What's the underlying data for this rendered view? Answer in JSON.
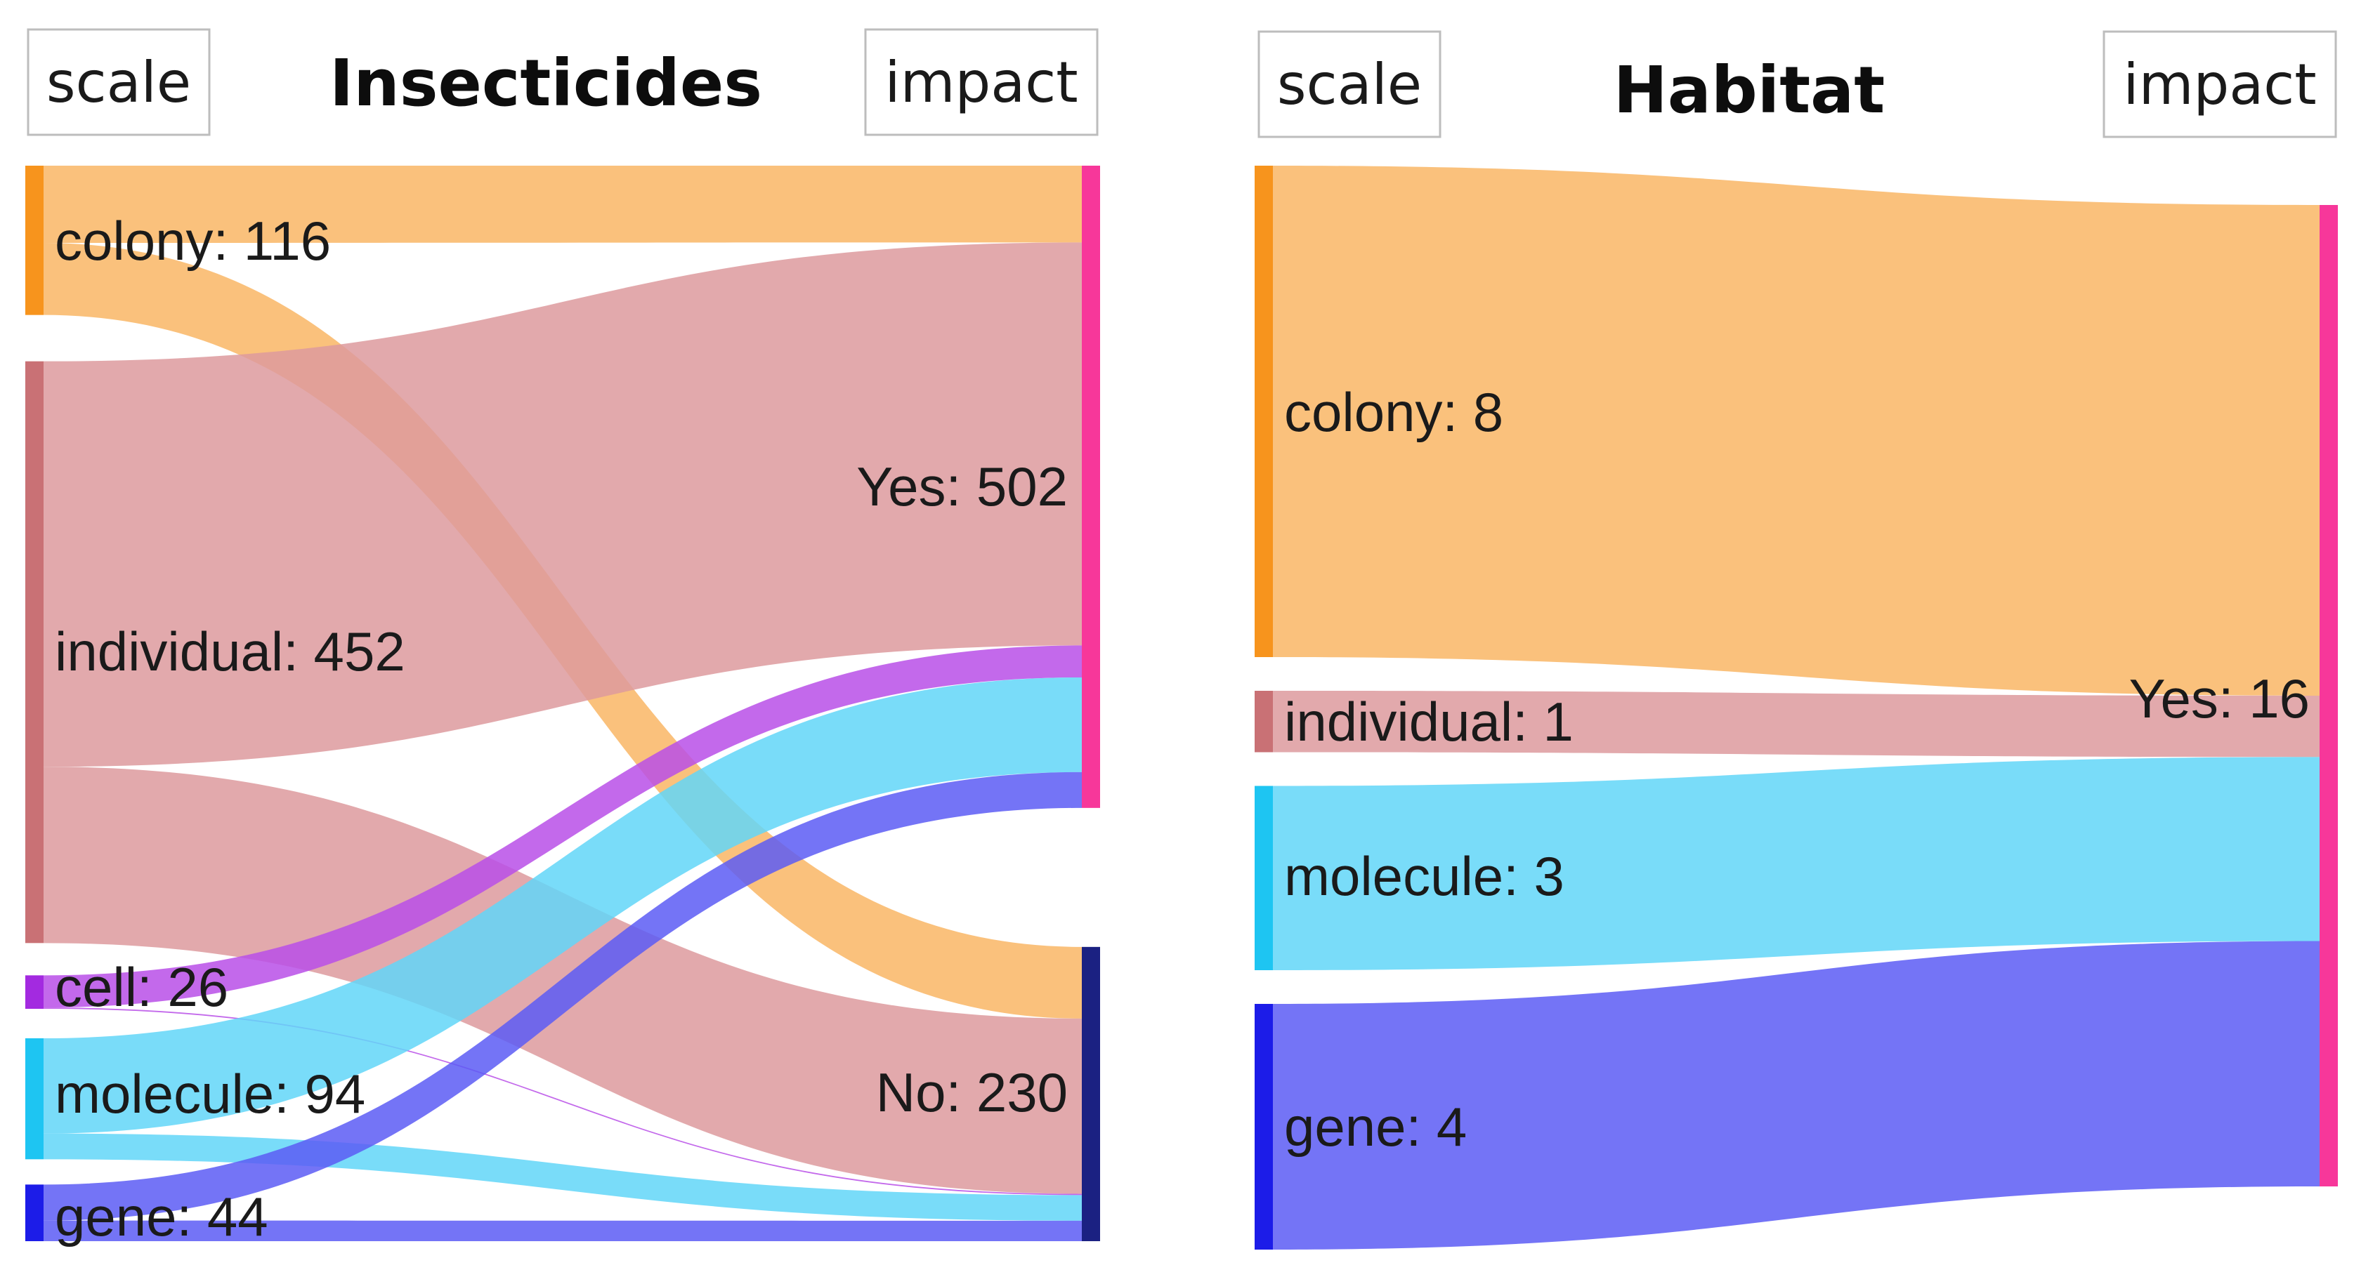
{
  "chart_data": [
    {
      "type": "sankey",
      "title": "Insecticides",
      "left_header": "scale",
      "right_header": "impact",
      "sources": [
        {
          "id": "colony",
          "label": "colony: 116",
          "value": 116,
          "color": "#f7941d"
        },
        {
          "id": "individual",
          "label": "individual: 452",
          "value": 452,
          "color": "#c97175"
        },
        {
          "id": "cell",
          "label": "cell: 26",
          "value": 26,
          "color": "#a32ae0"
        },
        {
          "id": "molecule",
          "label": "molecule: 94",
          "value": 94,
          "color": "#1ec5f2"
        },
        {
          "id": "gene",
          "label": "gene: 44",
          "value": 44,
          "color": "#1c1ce8"
        }
      ],
      "targets": [
        {
          "id": "yes",
          "label": "Yes: 502",
          "value": 502,
          "color": "#f7379a"
        },
        {
          "id": "no",
          "label": "No: 230",
          "value": 230,
          "color": "#1b2182"
        }
      ],
      "links": [
        {
          "source": "colony",
          "target": "yes",
          "value": 60,
          "color": "#f9b665"
        },
        {
          "source": "colony",
          "target": "no",
          "value": 56,
          "color": "#f9b665"
        },
        {
          "source": "individual",
          "target": "yes",
          "value": 315,
          "color": "#dd9a9e"
        },
        {
          "source": "individual",
          "target": "no",
          "value": 137,
          "color": "#dd9a9e"
        },
        {
          "source": "cell",
          "target": "yes",
          "value": 25,
          "color": "#b94fe8"
        },
        {
          "source": "cell",
          "target": "no",
          "value": 1,
          "color": "#b94fe8"
        },
        {
          "source": "molecule",
          "target": "yes",
          "value": 74,
          "color": "#62d6f8"
        },
        {
          "source": "molecule",
          "target": "no",
          "value": 20,
          "color": "#62d6f8"
        },
        {
          "source": "gene",
          "target": "yes",
          "value": 28,
          "color": "#5c5cf5"
        },
        {
          "source": "gene",
          "target": "no",
          "value": 16,
          "color": "#5c5cf5"
        }
      ]
    },
    {
      "type": "sankey",
      "title": "Habitat",
      "left_header": "scale",
      "right_header": "impact",
      "sources": [
        {
          "id": "colony",
          "label": "colony: 8",
          "value": 8,
          "color": "#f7941d"
        },
        {
          "id": "individual",
          "label": "individual: 1",
          "value": 1,
          "color": "#c97175"
        },
        {
          "id": "molecule",
          "label": "molecule: 3",
          "value": 3,
          "color": "#1ec5f2"
        },
        {
          "id": "gene",
          "label": "gene: 4",
          "value": 4,
          "color": "#1c1ce8"
        }
      ],
      "targets": [
        {
          "id": "yes",
          "label": "Yes: 16",
          "value": 16,
          "color": "#f7379a"
        }
      ],
      "links": [
        {
          "source": "colony",
          "target": "yes",
          "value": 8,
          "color": "#f9b665"
        },
        {
          "source": "individual",
          "target": "yes",
          "value": 1,
          "color": "#dd9a9e"
        },
        {
          "source": "molecule",
          "target": "yes",
          "value": 3,
          "color": "#62d6f8"
        },
        {
          "source": "gene",
          "target": "yes",
          "value": 4,
          "color": "#5c5cf5"
        }
      ]
    }
  ]
}
